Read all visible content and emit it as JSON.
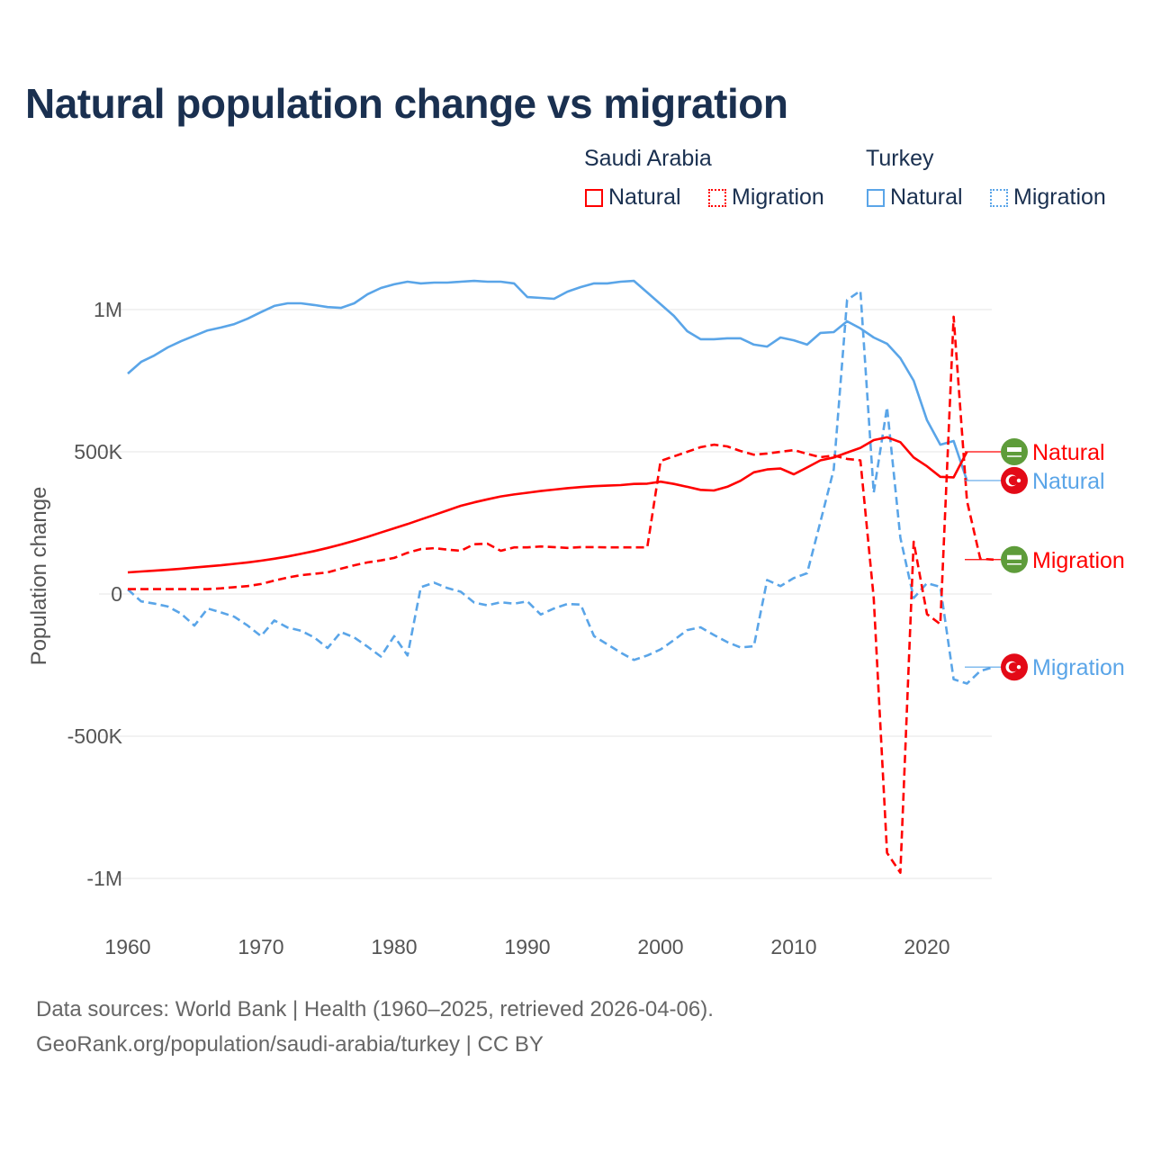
{
  "title": "Natural population change vs migration",
  "legend": {
    "groups": [
      {
        "name": "Saudi Arabia",
        "items": [
          "Natural",
          "Migration"
        ],
        "color": "#ff0000"
      },
      {
        "name": "Turkey",
        "items": [
          "Natural",
          "Migration"
        ],
        "color": "#5aa5e8"
      }
    ]
  },
  "footer": {
    "line1": "Data sources: World Bank | Health (1960–2025, retrieved 2026-04-06).",
    "line2": "GeoRank.org/population/saudi-arabia/turkey | CC BY"
  },
  "chart_data": {
    "type": "line",
    "title": "Natural population change vs migration",
    "xlabel": "",
    "ylabel": "Population change",
    "xlim": [
      1960,
      2025
    ],
    "ylim": [
      -1000000,
      1000000
    ],
    "x_ticks": [
      1960,
      1970,
      1980,
      1990,
      2000,
      2010,
      2020
    ],
    "x_tick_labels": [
      "1960",
      "1970",
      "1980",
      "1990",
      "2000",
      "2010",
      "2020"
    ],
    "y_ticks": [
      1000000,
      500000,
      0,
      -500000,
      -1000000
    ],
    "y_tick_labels": [
      "1M",
      "500K",
      "0",
      "-500K",
      "-1M"
    ],
    "grid": true,
    "legend_position": "top-right",
    "start_year": 1960,
    "series": [
      {
        "name": "Turkey Natural",
        "country": "Turkey",
        "kind": "Natural",
        "color": "#5aa5e8",
        "dash": false,
        "flag": "turkey",
        "values": [
          775000,
          816000,
          839000,
          867000,
          889000,
          908000,
          927000,
          937000,
          949000,
          968000,
          991000,
          1013000,
          1022000,
          1022000,
          1016000,
          1009000,
          1006000,
          1022000,
          1054000,
          1076000,
          1089000,
          1098000,
          1092000,
          1095000,
          1095000,
          1098000,
          1101000,
          1098000,
          1098000,
          1092000,
          1044000,
          1041000,
          1038000,
          1063000,
          1079000,
          1092000,
          1092000,
          1098000,
          1101000,
          1060000,
          1019000,
          978000,
          924000,
          896000,
          896000,
          899000,
          899000,
          877000,
          870000,
          902000,
          892000,
          877000,
          918000,
          921000,
          959000,
          934000,
          902000,
          880000,
          829000,
          750000,
          611000,
          525000,
          538000,
          399000
        ]
      },
      {
        "name": "Turkey Migration",
        "country": "Turkey",
        "kind": "Migration",
        "color": "#5aa5e8",
        "dash": true,
        "flag": "turkey",
        "values": [
          16000,
          -26000,
          -34000,
          -44000,
          -69000,
          -111000,
          -51000,
          -65000,
          -80000,
          -111000,
          -148000,
          -93000,
          -118000,
          -129000,
          -153000,
          -190000,
          -134000,
          -153000,
          -185000,
          -220000,
          -148000,
          -216000,
          24000,
          40000,
          21000,
          8000,
          -30000,
          -40000,
          -29000,
          -34000,
          -26000,
          -72000,
          -51000,
          -35000,
          -37000,
          -148000,
          -177000,
          -206000,
          -232000,
          -216000,
          -195000,
          -162000,
          -127000,
          -117000,
          -144000,
          -169000,
          -188000,
          -184000,
          49000,
          28000,
          56000,
          73000,
          254000,
          438000,
          1034000,
          1066000,
          356000,
          657000,
          198000,
          -14000,
          38000,
          25000,
          -300000,
          -315000,
          -271000,
          -257000
        ]
      },
      {
        "name": "Saudi Arabia Natural",
        "country": "Saudi Arabia",
        "kind": "Natural",
        "color": "#ff0000",
        "dash": false,
        "flag": "saudi-arabia",
        "values": [
          76000,
          79000,
          82000,
          85000,
          89000,
          93000,
          97000,
          101000,
          106000,
          111000,
          117000,
          124000,
          132000,
          141000,
          151000,
          162000,
          174000,
          187000,
          201000,
          216000,
          231000,
          246000,
          262000,
          278000,
          294000,
          310000,
          322000,
          333000,
          343000,
          350000,
          356000,
          362000,
          367000,
          372000,
          376000,
          379000,
          381000,
          383000,
          387000,
          388000,
          395000,
          387000,
          377000,
          366000,
          364000,
          377000,
          398000,
          428000,
          438000,
          441000,
          421000,
          445000,
          470000,
          480000,
          497000,
          514000,
          541000,
          551000,
          534000,
          480000,
          449000,
          412000,
          410000,
          500000
        ]
      },
      {
        "name": "Saudi Arabia Migration",
        "country": "Saudi Arabia",
        "kind": "Migration",
        "color": "#ff0000",
        "dash": true,
        "flag": "saudi-arabia",
        "values": [
          17000,
          17000,
          17000,
          17000,
          17000,
          17000,
          17000,
          20000,
          24000,
          28000,
          35000,
          47000,
          58000,
          66000,
          71000,
          76000,
          89000,
          101000,
          111000,
          118000,
          127000,
          145000,
          158000,
          161000,
          156000,
          152000,
          175000,
          177000,
          152000,
          164000,
          164000,
          167000,
          165000,
          162000,
          165000,
          165000,
          164000,
          164000,
          164000,
          164000,
          468000,
          484000,
          500000,
          516000,
          525000,
          519000,
          503000,
          490000,
          494000,
          500000,
          506000,
          493000,
          481000,
          487000,
          475000,
          470000,
          -14000,
          -910000,
          -980000,
          184000,
          -71000,
          -106000,
          975000,
          328000,
          124000,
          121000
        ]
      }
    ]
  }
}
